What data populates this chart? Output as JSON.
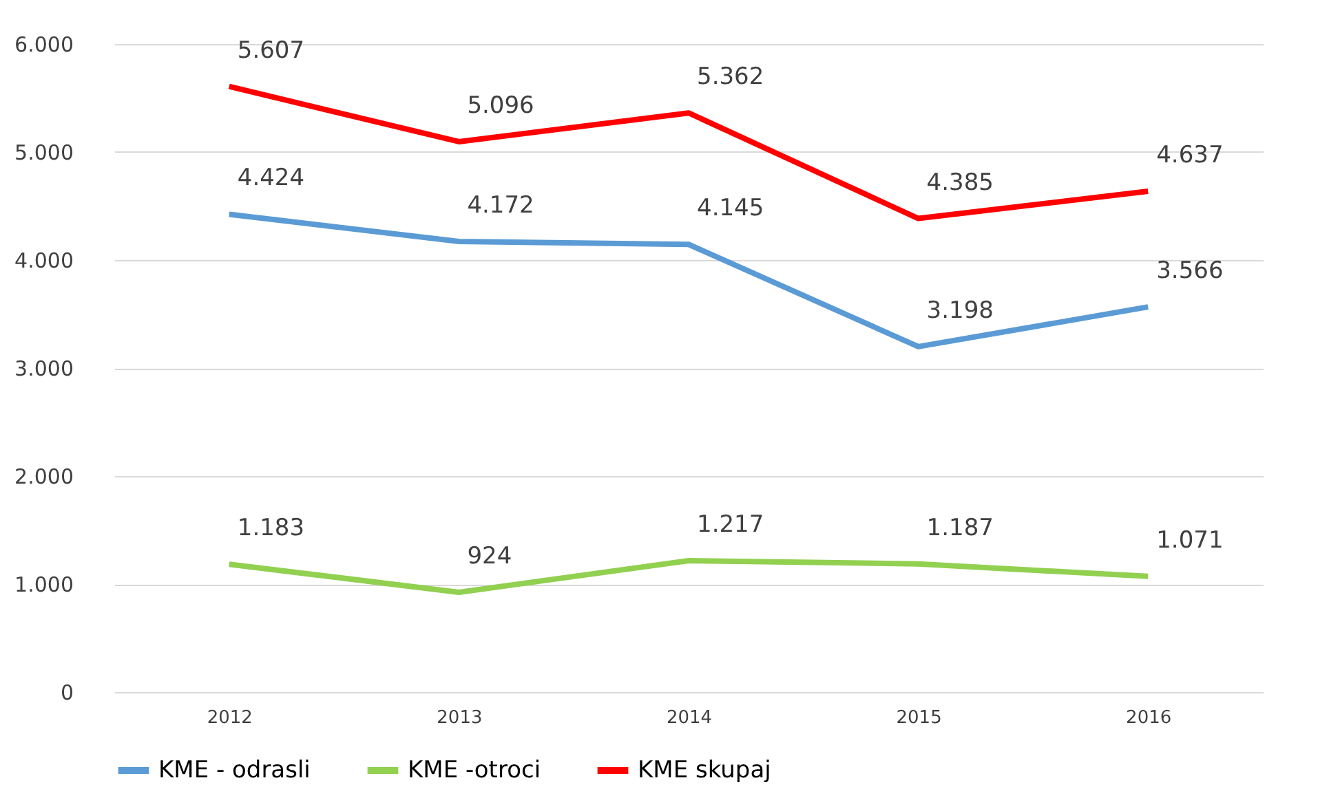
{
  "chart_data": {
    "type": "line",
    "categories": [
      "2012",
      "2013",
      "2014",
      "2015",
      "2016"
    ],
    "series": [
      {
        "name": "KME - odrasli",
        "color": "#5b9bd5",
        "values": [
          4424,
          4172,
          4145,
          3198,
          3566
        ],
        "value_labels": [
          "4.424",
          "4.172",
          "4.145",
          "3.198",
          "3.566"
        ]
      },
      {
        "name": "KME -otroci",
        "color": "#92d050",
        "values": [
          1183,
          924,
          1217,
          1187,
          1071
        ],
        "value_labels": [
          "1.183",
          "924",
          "1.217",
          "1.187",
          "1.071"
        ]
      },
      {
        "name": "KME skupaj",
        "color": "#ff0000",
        "values": [
          5607,
          5096,
          5362,
          4385,
          4637
        ],
        "value_labels": [
          "5.607",
          "5.096",
          "5.362",
          "4.385",
          "4.637"
        ]
      }
    ],
    "ylim": [
      0,
      6000
    ],
    "yticks": [
      0,
      {
        "value": 1000,
        "label": "1.000"
      },
      {
        "value": 2000,
        "label": "2.000"
      },
      {
        "value": 3000,
        "label": "3.000"
      },
      {
        "value": 4000,
        "label": "4.000"
      },
      {
        "value": 5000,
        "label": "5.000"
      },
      {
        "value": 6000,
        "label": "6.000"
      }
    ],
    "grid": "y",
    "legend": "bottom",
    "marker": "none",
    "line_style": "solid"
  }
}
